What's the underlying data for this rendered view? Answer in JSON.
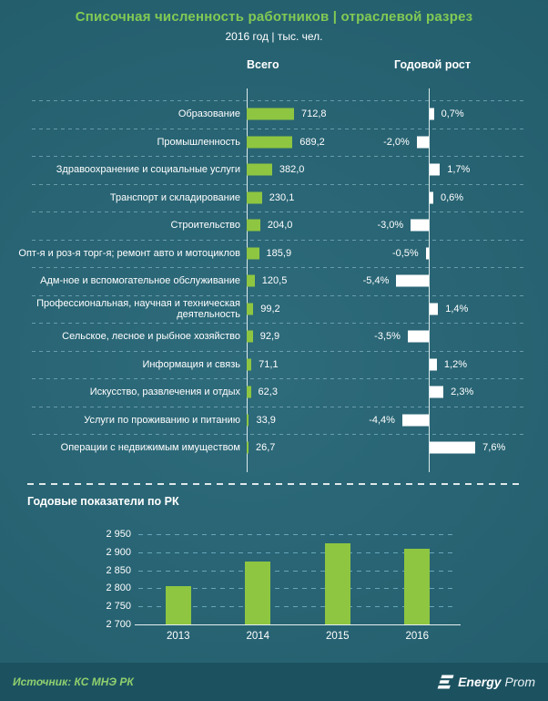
{
  "header": {
    "title": "Списочная численность работников | отраслевой разрез",
    "subtitle": "2016 год | тыс. чел."
  },
  "annual_section": {
    "title": "Годовые показатели по РК"
  },
  "footer": {
    "source": "Источник: КС МНЭ РК",
    "brand_bold": "Energy",
    "brand_light": "Prom"
  },
  "colors": {
    "background_center": "#2e6b7b",
    "background_edge": "#1e5765",
    "footer_band": "#1c5260",
    "bar_green": "#8ec641",
    "title_green": "#82ca54",
    "source_green": "#90d06e",
    "growth_bar": "#ffffff",
    "separator": "#9cc9d8",
    "gridline": "#7cbcd2",
    "text": "#ffffff"
  },
  "chart_data": [
    {
      "type": "bar",
      "orientation": "horizontal",
      "title": "Списочная численность работников | отраслевой разрез",
      "subtitle": "2016 год | тыс. чел.",
      "categories": [
        "Образование",
        "Промышленность",
        "Здравоохранение и социальные услуги",
        "Транспорт и складирование",
        "Строительство",
        "Опт-я и роз-я торг-я; ремонт авто и мотоциклов",
        "Адм-ное и вспомогательное обслуживание",
        "Профессиональная, научная и техническая деятельность",
        "Сельское, лесное и рыбное хозяйство",
        "Информация и связь",
        "Искусство, развлечения и отдых",
        "Услуги по проживанию и питанию",
        "Операции с недвижимым имуществом"
      ],
      "series": [
        {
          "name": "Всего",
          "values": [
            712.8,
            689.2,
            382.0,
            230.1,
            204.0,
            185.9,
            120.5,
            99.2,
            92.9,
            71.1,
            62.3,
            33.9,
            26.7
          ],
          "labels": [
            "712,8",
            "689,2",
            "382,0",
            "230,1",
            "204,0",
            "185,9",
            "120,5",
            "99,2",
            "92,9",
            "71,1",
            "62,3",
            "33,9",
            "26,7"
          ]
        },
        {
          "name": "Годовой рост",
          "values": [
            0.7,
            -2.0,
            1.7,
            0.6,
            -3.0,
            -0.5,
            -5.4,
            1.4,
            -3.5,
            1.2,
            2.3,
            -4.4,
            7.6
          ],
          "labels": [
            "0,7%",
            "-2,0%",
            "1,7%",
            "0,6%",
            "-3,0%",
            "-0,5%",
            "-5,4%",
            "1,4%",
            "-3,5%",
            "1,2%",
            "2,3%",
            "-4,4%",
            "7,6%"
          ]
        }
      ]
    },
    {
      "type": "bar",
      "title": "Годовые показатели по РК",
      "categories": [
        "2013",
        "2014",
        "2015",
        "2016"
      ],
      "values": [
        2805,
        2875,
        2925,
        2910
      ],
      "ylim": [
        2700,
        2950
      ],
      "grid": true,
      "legend_position": "none",
      "yticks": [
        {
          "value": 2950,
          "label": "2 950"
        },
        {
          "value": 2900,
          "label": "2 900"
        },
        {
          "value": 2850,
          "label": "2 850"
        },
        {
          "value": 2800,
          "label": "2 800"
        },
        {
          "value": 2750,
          "label": "2 750"
        },
        {
          "value": 2700,
          "label": "2 700"
        }
      ]
    }
  ]
}
